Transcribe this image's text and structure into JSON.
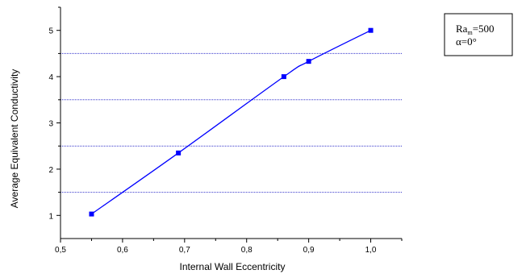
{
  "chart_data": {
    "type": "line",
    "title": "",
    "xlabel": "Internal Wall Eccentricity",
    "ylabel": "Average Equivalent Conductivity",
    "xlim": [
      0.5,
      1.05
    ],
    "ylim": [
      0.5,
      5.5
    ],
    "x_ticks": [
      0.5,
      0.6,
      0.7,
      0.8,
      0.9,
      1.0
    ],
    "x_tick_labels": [
      "0,5",
      "0,6",
      "0,7",
      "0,8",
      "0,9",
      "1,0"
    ],
    "y_ticks": [
      1,
      2,
      3,
      4,
      5
    ],
    "y_tick_labels": [
      "1",
      "2",
      "3",
      "4",
      "5"
    ],
    "reference_lines_y": [
      1.5,
      2.5,
      3.5,
      4.5
    ],
    "grid": false,
    "series": [
      {
        "color": "#0000ff",
        "marker": "square",
        "x": [
          0.55,
          0.69,
          0.86,
          0.9,
          1.0
        ],
        "y": [
          1.03,
          2.35,
          4.0,
          4.33,
          5.0
        ]
      }
    ],
    "legend": {
      "placement": "top-right",
      "line1_main": "Ra",
      "line1_sub": "m",
      "line1_rest": "=500",
      "line2": "α=0°"
    }
  },
  "colors": {
    "series": "#0000ff",
    "reference_line": "#3333cc",
    "axis": "#000000"
  }
}
